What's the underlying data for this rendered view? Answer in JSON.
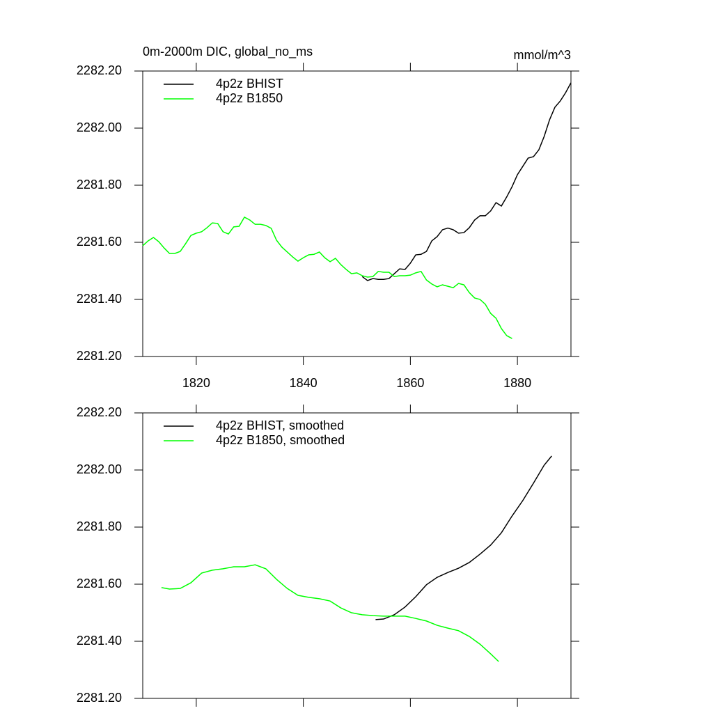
{
  "chart_data": [
    {
      "type": "line",
      "title": "0m-2000m DIC, global_no_ms",
      "unit_label": "mmol/m^3",
      "xlim": [
        1810,
        1890
      ],
      "xticks": [
        1820,
        1840,
        1860,
        1880
      ],
      "xtick_labels": true,
      "ylim": [
        2281.2,
        2282.2
      ],
      "yticks": [
        {
          "value": 2281.2,
          "label": "2281.20"
        },
        {
          "value": 2281.4,
          "label": "2281.40"
        },
        {
          "value": 2281.6,
          "label": "2281.60"
        },
        {
          "value": 2281.8,
          "label": "2281.80"
        },
        {
          "value": 2282.0,
          "label": "2282.00"
        },
        {
          "value": 2282.2,
          "label": "2282.20"
        }
      ],
      "legend": "upper left",
      "series": [
        {
          "name": "4p2z BHIST",
          "color": "#000000",
          "x": [
            1851,
            1852,
            1853,
            1854,
            1855,
            1856,
            1857,
            1858,
            1859,
            1860,
            1861,
            1862,
            1863,
            1864,
            1865,
            1866,
            1867,
            1868,
            1869,
            1870,
            1871,
            1872,
            1873,
            1874,
            1875,
            1876,
            1877,
            1878,
            1879,
            1880,
            1881,
            1882,
            1883,
            1884,
            1885,
            1886,
            1887,
            1888,
            1889,
            1890
          ],
          "values": [
            2281.48,
            2281.466,
            2281.473,
            2281.47,
            2281.47,
            2281.473,
            2281.49,
            2281.507,
            2281.505,
            2281.527,
            2281.556,
            2281.558,
            2281.568,
            2281.605,
            2281.62,
            2281.644,
            2281.65,
            2281.644,
            2281.632,
            2281.634,
            2281.651,
            2281.678,
            2281.693,
            2281.693,
            2281.71,
            2281.739,
            2281.727,
            2281.759,
            2281.795,
            2281.837,
            2281.866,
            2281.895,
            2281.9,
            2281.924,
            2281.971,
            2282.029,
            2282.073,
            2282.095,
            2282.124,
            2282.159
          ]
        },
        {
          "name": "4p2z B1850",
          "color": "#00ff00",
          "x": [
            1810,
            1811,
            1812,
            1813,
            1814,
            1815,
            1816,
            1817,
            1818,
            1819,
            1820,
            1821,
            1822,
            1823,
            1824,
            1825,
            1826,
            1827,
            1828,
            1829,
            1830,
            1831,
            1832,
            1833,
            1834,
            1835,
            1836,
            1837,
            1838,
            1839,
            1840,
            1841,
            1842,
            1843,
            1844,
            1845,
            1846,
            1847,
            1848,
            1849,
            1850,
            1851,
            1852,
            1853,
            1854,
            1855,
            1856,
            1857,
            1858,
            1859,
            1860,
            1861,
            1862,
            1863,
            1864,
            1865,
            1866,
            1867,
            1868,
            1869,
            1870,
            1871,
            1872,
            1873,
            1874,
            1875,
            1876,
            1877,
            1878,
            1879
          ],
          "values": [
            2281.588,
            2281.605,
            2281.617,
            2281.602,
            2281.58,
            2281.561,
            2281.561,
            2281.568,
            2281.595,
            2281.624,
            2281.632,
            2281.637,
            2281.651,
            2281.668,
            2281.666,
            2281.637,
            2281.629,
            2281.654,
            2281.656,
            2281.688,
            2281.678,
            2281.663,
            2281.663,
            2281.659,
            2281.649,
            2281.607,
            2281.583,
            2281.566,
            2281.549,
            2281.534,
            2281.546,
            2281.556,
            2281.558,
            2281.566,
            2281.546,
            2281.532,
            2281.544,
            2281.522,
            2281.505,
            2281.49,
            2281.493,
            2281.483,
            2281.478,
            2281.48,
            2281.498,
            2281.495,
            2281.495,
            2281.48,
            2281.483,
            2281.483,
            2281.485,
            2281.493,
            2281.498,
            2281.468,
            2281.454,
            2281.444,
            2281.451,
            2281.446,
            2281.441,
            2281.456,
            2281.451,
            2281.424,
            2281.405,
            2281.4,
            2281.383,
            2281.351,
            2281.334,
            2281.298,
            2281.273,
            2281.263
          ]
        }
      ]
    },
    {
      "type": "line",
      "xlim": [
        1810,
        1890
      ],
      "xticks": [
        1820,
        1840,
        1860,
        1880
      ],
      "xtick_labels": false,
      "ylim": [
        2281.2,
        2282.2
      ],
      "yticks": [
        {
          "value": 2281.2,
          "label": "2281.20"
        },
        {
          "value": 2281.4,
          "label": "2281.40"
        },
        {
          "value": 2281.6,
          "label": "2281.60"
        },
        {
          "value": 2281.8,
          "label": "2281.80"
        },
        {
          "value": 2282.0,
          "label": "2282.00"
        },
        {
          "value": 2282.2,
          "label": "2282.20"
        }
      ],
      "legend": "upper left",
      "series": [
        {
          "name": "4p2z BHIST, smoothed",
          "color": "#000000",
          "x": [
            1853.5,
            1855,
            1857,
            1859,
            1861,
            1863,
            1865,
            1867,
            1869,
            1871,
            1873,
            1875,
            1877,
            1879,
            1881,
            1883,
            1885,
            1886.4
          ],
          "values": [
            2281.476,
            2281.478,
            2281.493,
            2281.52,
            2281.556,
            2281.598,
            2281.624,
            2281.641,
            2281.656,
            2281.676,
            2281.705,
            2281.737,
            2281.78,
            2281.839,
            2281.893,
            2281.954,
            2282.017,
            2282.049
          ]
        },
        {
          "name": "4p2z B1850, smoothed",
          "color": "#00ff00",
          "x": [
            1813.5,
            1815,
            1817,
            1819,
            1821,
            1823,
            1825,
            1827,
            1829,
            1831,
            1833,
            1835,
            1837,
            1839,
            1841,
            1843,
            1845,
            1847,
            1849,
            1851,
            1853,
            1855,
            1857,
            1859,
            1861,
            1863,
            1865,
            1867,
            1869,
            1871,
            1873,
            1875,
            1876.5
          ],
          "values": [
            2281.588,
            2281.583,
            2281.585,
            2281.605,
            2281.639,
            2281.649,
            2281.654,
            2281.661,
            2281.661,
            2281.668,
            2281.654,
            2281.617,
            2281.585,
            2281.561,
            2281.554,
            2281.549,
            2281.541,
            2281.517,
            2281.5,
            2281.493,
            2281.49,
            2281.488,
            2281.488,
            2281.488,
            2281.48,
            2281.471,
            2281.456,
            2281.446,
            2281.437,
            2281.417,
            2281.39,
            2281.356,
            2281.329
          ]
        }
      ]
    }
  ]
}
